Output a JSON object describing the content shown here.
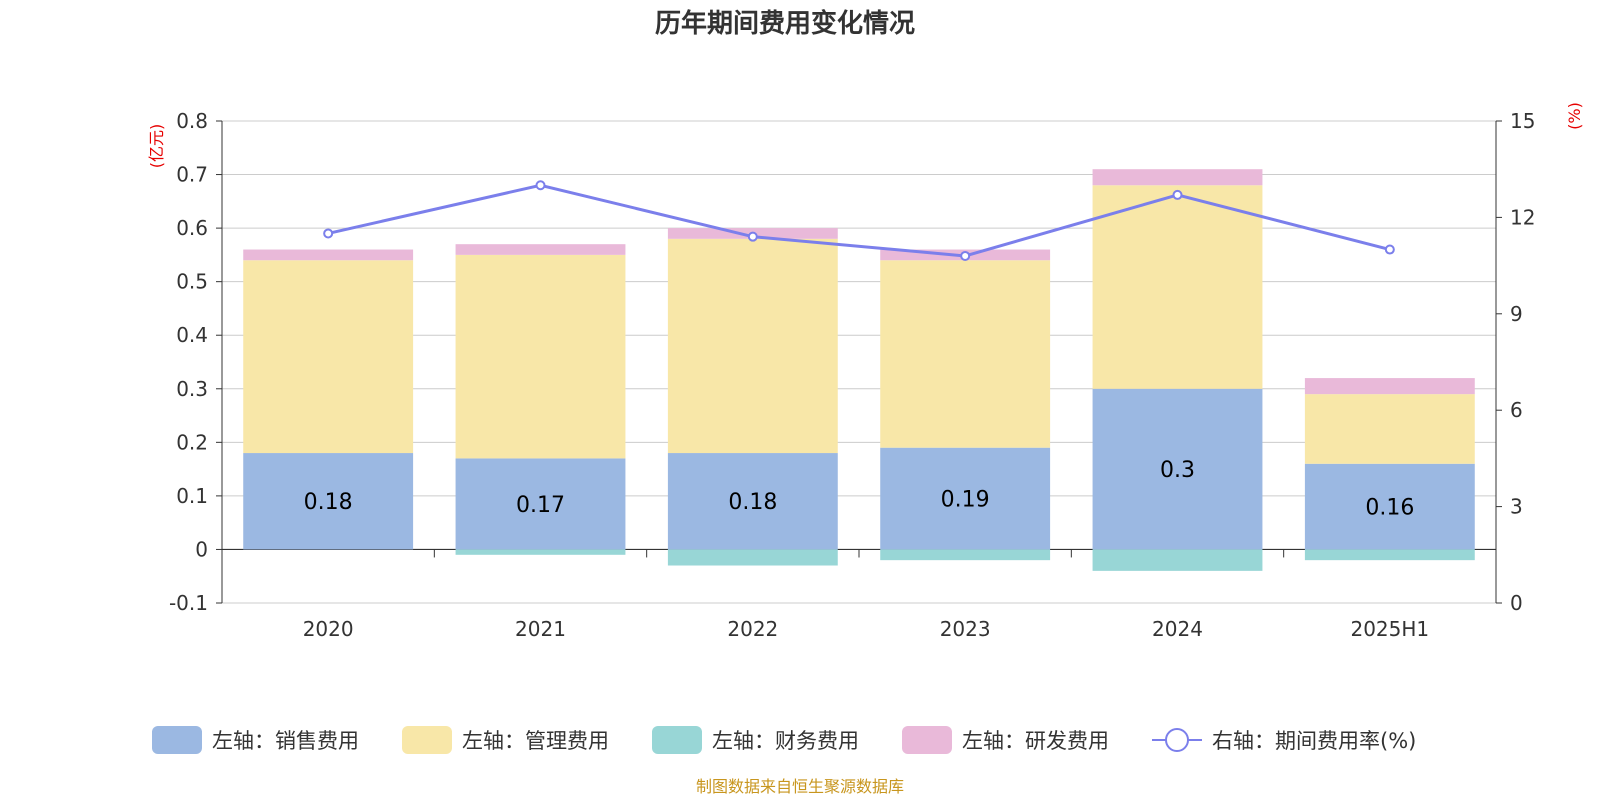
{
  "chart_data": {
    "type": "bar",
    "title": "历年期间费用变化情况",
    "categories": [
      "2020",
      "2021",
      "2022",
      "2023",
      "2024",
      "2025H1"
    ],
    "left_axis": {
      "unit": "(亿元)",
      "ylim": [
        -0.1,
        0.8
      ],
      "ticks": [
        -0.1,
        0,
        0.1,
        0.2,
        0.3,
        0.4,
        0.5,
        0.6,
        0.7,
        0.8
      ]
    },
    "right_axis": {
      "unit": "(%)",
      "ylim": [
        0,
        15
      ],
      "ticks": [
        0,
        3,
        6,
        9,
        12,
        15
      ]
    },
    "grid": true,
    "stacked": true,
    "series": [
      {
        "name": "左轴：销售费用",
        "axis": "left",
        "type": "bar",
        "color": "#9bb8e2",
        "values": [
          0.18,
          0.17,
          0.18,
          0.19,
          0.3,
          0.16
        ],
        "show_labels": true
      },
      {
        "name": "左轴：管理费用",
        "axis": "left",
        "type": "bar",
        "color": "#f8e7a8",
        "values": [
          0.36,
          0.38,
          0.4,
          0.35,
          0.38,
          0.13
        ]
      },
      {
        "name": "左轴：财务费用",
        "axis": "left",
        "type": "bar",
        "color": "#98d6d6",
        "values": [
          0.0,
          -0.01,
          -0.03,
          -0.02,
          -0.04,
          -0.02
        ]
      },
      {
        "name": "左轴：研发费用",
        "axis": "left",
        "type": "bar",
        "color": "#e9b9d9",
        "values": [
          0.02,
          0.02,
          0.02,
          0.02,
          0.03,
          0.03
        ]
      },
      {
        "name": "右轴：期间费用率(%)",
        "axis": "right",
        "type": "line",
        "color": "#7b7feb",
        "values": [
          11.5,
          13.0,
          11.4,
          10.8,
          12.7,
          11.0
        ]
      }
    ],
    "legend_position": "bottom",
    "source": "制图数据来自恒生聚源数据库"
  }
}
